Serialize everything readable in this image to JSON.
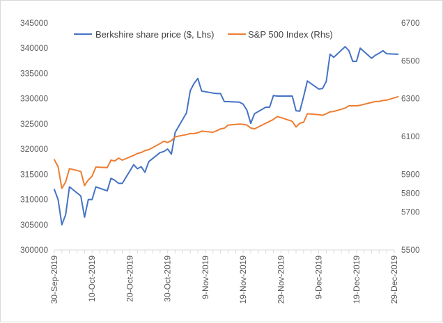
{
  "chart_data": {
    "type": "line",
    "title": "",
    "legend_position": "top",
    "grid": false,
    "y_left": {
      "ticks": [
        "300000",
        "305000",
        "310000",
        "315000",
        "320000",
        "325000",
        "330000",
        "335000",
        "340000",
        "345000"
      ],
      "ylim": [
        300000,
        345000
      ]
    },
    "y_right": {
      "ticks": [
        "5500",
        "5600",
        "5700",
        "5800",
        "5900",
        "6000",
        "6100",
        "6200",
        "6300",
        "6400",
        "6500",
        "6600",
        "6700"
      ],
      "visible_ticks": [
        "5500",
        "5700",
        "5800",
        "5900",
        "6100",
        "6300",
        "6500",
        "6700"
      ],
      "ylim": [
        5500,
        6700
      ]
    },
    "x_ticks": [
      "30-Sep-2019",
      "10-Oct-2019",
      "20-Oct-2019",
      "30-Oct-2019",
      "9-Nov-2019",
      "19-Nov-2019",
      "29-Nov-2019",
      "9-Dec-2019",
      "19-Dec-2019",
      "29-Dec-2019"
    ],
    "x_range_days": [
      0,
      90
    ],
    "series": [
      {
        "name": "Berkshire share price ($, Lhs)",
        "axis": "left",
        "color": "#4472c4",
        "x": [
          0,
          1,
          2,
          3,
          4,
          7,
          8,
          9,
          10,
          11,
          14,
          15,
          16,
          17,
          18,
          21,
          22,
          23,
          24,
          25,
          28,
          29,
          30,
          31,
          32,
          35,
          36,
          37,
          38,
          39,
          42,
          43,
          44,
          45,
          46,
          49,
          50,
          51,
          52,
          53,
          56,
          57,
          58,
          59,
          60,
          63,
          64,
          65,
          66,
          67,
          70,
          71,
          72,
          73,
          74,
          77,
          78,
          79,
          80,
          81,
          84,
          85,
          86,
          87,
          88,
          91
        ],
        "values": [
          312000,
          310000,
          305000,
          307000,
          312500,
          310700,
          306500,
          310000,
          310000,
          312500,
          311700,
          314200,
          313800,
          313200,
          313200,
          316900,
          316100,
          316500,
          315400,
          317500,
          319300,
          319500,
          320000,
          319000,
          323300,
          327200,
          331600,
          333000,
          334000,
          331500,
          331100,
          331000,
          331000,
          329400,
          329400,
          329300,
          328900,
          327700,
          325100,
          327000,
          328300,
          328300,
          330600,
          330500,
          330500,
          330500,
          327600,
          327500,
          330400,
          333500,
          331900,
          332000,
          333400,
          338800,
          338200,
          340300,
          339500,
          337400,
          337400,
          340000,
          338000,
          338600,
          339000,
          339500,
          338900,
          338800
        ]
      },
      {
        "name": "S&P 500 Index  (Rhs)",
        "axis": "right",
        "color": "#ed7d31",
        "x": [
          0,
          1,
          2,
          3,
          4,
          7,
          8,
          9,
          10,
          11,
          14,
          15,
          16,
          17,
          18,
          21,
          22,
          23,
          24,
          25,
          28,
          29,
          30,
          31,
          32,
          35,
          36,
          37,
          38,
          39,
          42,
          43,
          44,
          45,
          46,
          49,
          50,
          51,
          52,
          53,
          56,
          57,
          58,
          59,
          60,
          63,
          64,
          65,
          66,
          67,
          70,
          71,
          72,
          73,
          74,
          77,
          78,
          79,
          80,
          81,
          84,
          85,
          86,
          87,
          88,
          91
        ],
        "values": [
          5977,
          5940,
          5825,
          5860,
          5930,
          5915,
          5840,
          5870,
          5890,
          5938,
          5935,
          5975,
          5970,
          5985,
          5975,
          6000,
          6010,
          6015,
          6025,
          6030,
          6062,
          6075,
          6068,
          6078,
          6098,
          6110,
          6115,
          6115,
          6120,
          6128,
          6122,
          6130,
          6140,
          6143,
          6160,
          6165,
          6164,
          6160,
          6145,
          6140,
          6170,
          6180,
          6190,
          6205,
          6200,
          6180,
          6150,
          6170,
          6175,
          6220,
          6215,
          6212,
          6220,
          6230,
          6232,
          6250,
          6262,
          6262,
          6262,
          6265,
          6280,
          6285,
          6285,
          6290,
          6292,
          6310
        ]
      }
    ]
  }
}
